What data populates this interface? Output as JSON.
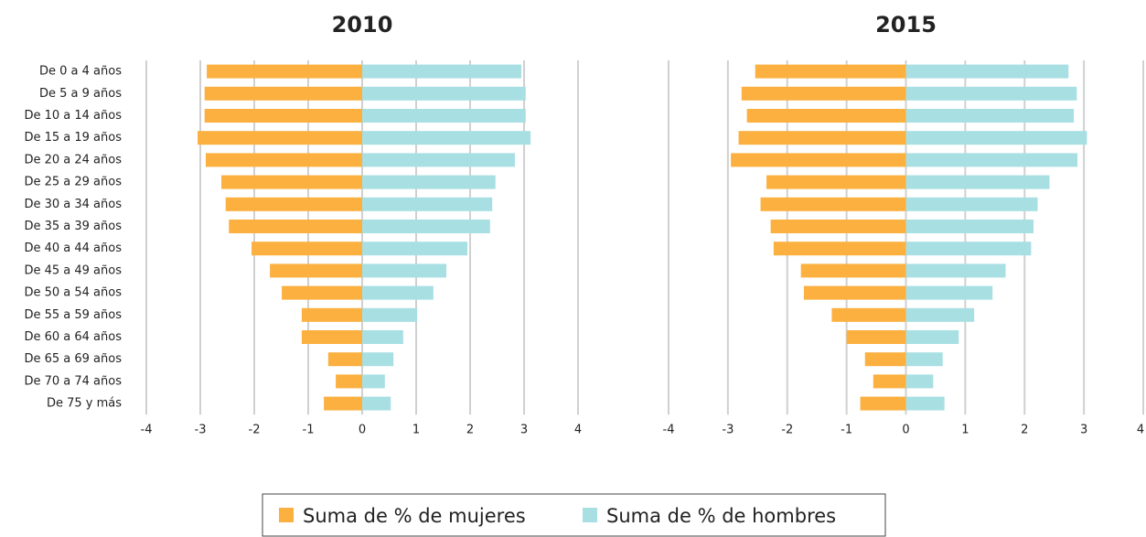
{
  "chart_data": [
    {
      "type": "bar",
      "orientation": "horizontal",
      "title": "2010",
      "categories": [
        "De 0 a 4 años",
        "De 5 a 9 años",
        "De 10 a 14 años",
        "De 15 a 19 años",
        "De 20 a 24 años",
        "De 25 a 29 años",
        "De 30 a 34 años",
        "De 35 a 39 años",
        "De 40 a 44 años",
        "De 45 a 49 años",
        "De 50 a 54 años",
        "De 55 a 59 años",
        "De 60 a 64 años",
        "De 65 a 69 años",
        "De 70 a 74 años",
        "De 75 y más"
      ],
      "series": [
        {
          "name": "Suma de % de mujeres",
          "color": "#fbb040",
          "values": [
            -2.88,
            -2.92,
            -2.92,
            -3.05,
            -2.9,
            -2.61,
            -2.53,
            -2.47,
            -2.05,
            -1.71,
            -1.49,
            -1.12,
            -1.12,
            -0.63,
            -0.49,
            -0.71
          ]
        },
        {
          "name": "Suma de % de hombres",
          "color": "#a8dfe3",
          "values": [
            2.95,
            3.03,
            3.03,
            3.12,
            2.83,
            2.47,
            2.41,
            2.37,
            1.95,
            1.56,
            1.32,
            1.02,
            0.76,
            0.58,
            0.42,
            0.53
          ]
        }
      ],
      "xlim": [
        -4,
        4
      ],
      "xticks": [
        -4,
        -3,
        -2,
        -1,
        0,
        1,
        2,
        3,
        4
      ],
      "grid": true
    },
    {
      "type": "bar",
      "orientation": "horizontal",
      "title": "2015",
      "series": [
        {
          "color": "#fbb040",
          "values": [
            -2.54,
            -2.77,
            -2.68,
            -2.82,
            -2.95,
            -2.35,
            -2.45,
            -2.28,
            -2.23,
            -1.77,
            -1.72,
            -1.25,
            -1.0,
            -0.69,
            -0.55,
            -0.77
          ]
        },
        {
          "color": "#a8dfe3",
          "values": [
            2.74,
            2.88,
            2.83,
            3.05,
            2.89,
            2.42,
            2.22,
            2.15,
            2.11,
            1.68,
            1.46,
            1.15,
            0.89,
            0.62,
            0.46,
            0.65
          ]
        }
      ],
      "xlim": [
        -4,
        4
      ],
      "xticks": [
        -4,
        -3,
        -2,
        -1,
        0,
        1,
        2,
        3,
        4
      ],
      "grid": true
    }
  ]
}
